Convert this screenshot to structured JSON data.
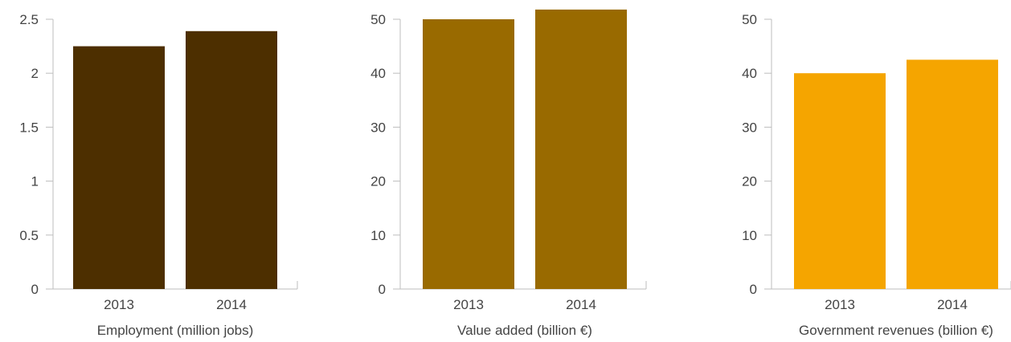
{
  "chart_data": [
    {
      "type": "bar",
      "title": "",
      "xlabel": "Employment (million jobs)",
      "ylabel": "",
      "categories": [
        "2013",
        "2014"
      ],
      "values": [
        2.25,
        2.39
      ],
      "ylim": [
        0,
        2.5
      ],
      "yticks": [
        0,
        0.5,
        1,
        1.5,
        2,
        2.5
      ],
      "ytick_labels": [
        "0",
        "0.5",
        "1",
        "1.5",
        "2",
        "2.5"
      ],
      "color": "#4d2f00",
      "grid": false
    },
    {
      "type": "bar",
      "title": "",
      "xlabel": "Value added (billion €)",
      "ylabel": "",
      "categories": [
        "2013",
        "2014"
      ],
      "values": [
        50,
        51.8
      ],
      "ylim": [
        0,
        50
      ],
      "yticks": [
        0,
        10,
        20,
        30,
        40,
        50
      ],
      "ytick_labels": [
        "0",
        "10",
        "20",
        "30",
        "40",
        "50"
      ],
      "color": "#996a00",
      "grid": false
    },
    {
      "type": "bar",
      "title": "",
      "xlabel": "Government revenues (billion €)",
      "ylabel": "",
      "categories": [
        "2013",
        "2014"
      ],
      "values": [
        40,
        42.5
      ],
      "ylim": [
        0,
        50
      ],
      "yticks": [
        0,
        10,
        20,
        30,
        40,
        50
      ],
      "ytick_labels": [
        "0",
        "10",
        "20",
        "30",
        "40",
        "50"
      ],
      "color": "#f5a500",
      "grid": false
    }
  ]
}
